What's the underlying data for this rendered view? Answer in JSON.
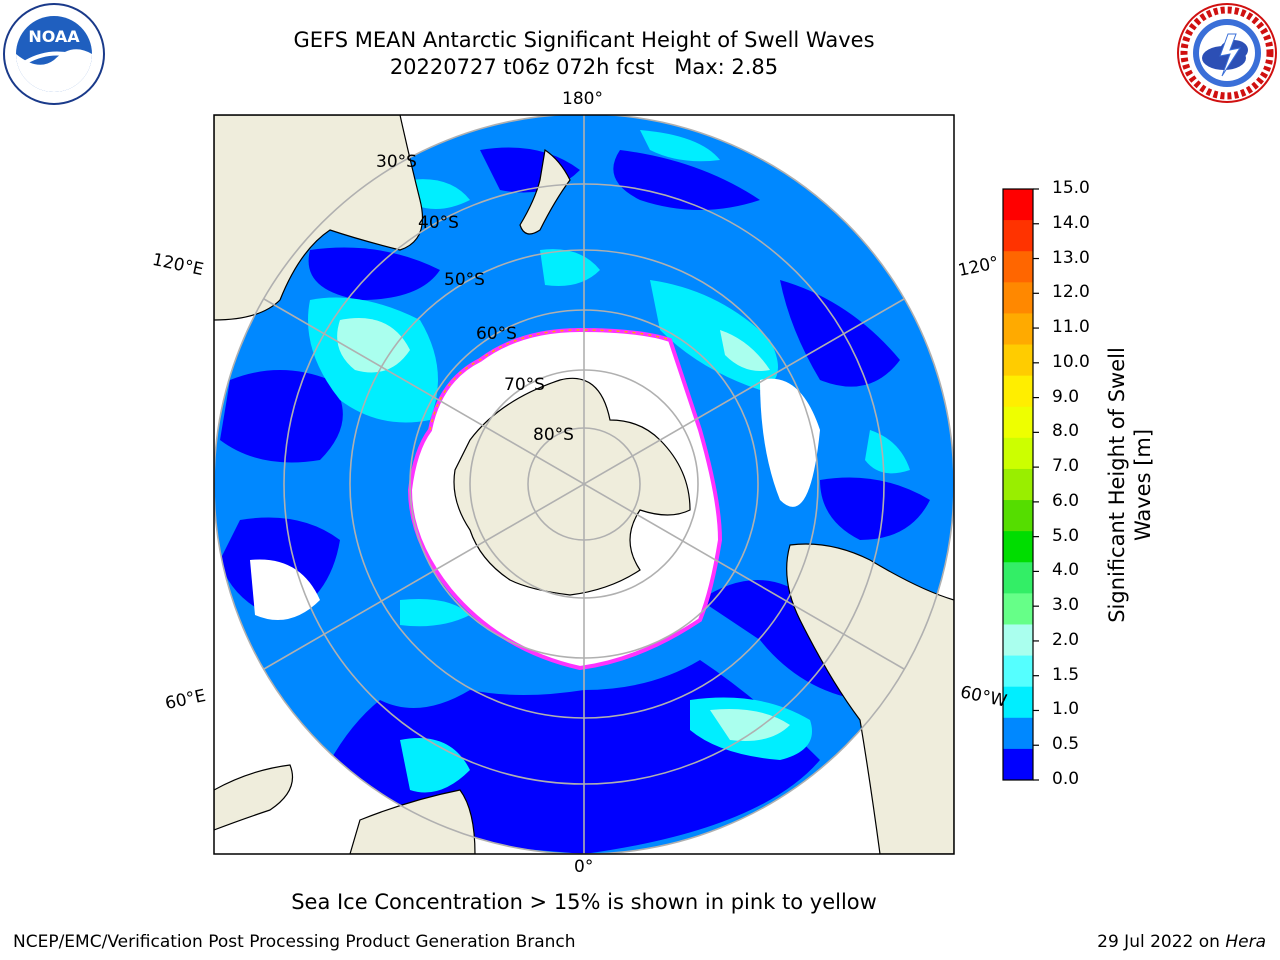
{
  "title": {
    "line1": "GEFS MEAN Antarctic Significant Height of Swell Waves",
    "line2": "20220727 t06z 072h fcst   Max: 2.85"
  },
  "map": {
    "projection": "south-polar-stereographic",
    "meridian_labels": {
      "top": "180°",
      "bottom": "0°",
      "left_upper": "120°E",
      "left_lower": "60°E",
      "right_upper": "120°",
      "right_lower": "60°W"
    },
    "parallel_labels": [
      "30°S",
      "40°S",
      "50°S",
      "60°S",
      "70°S",
      "80°S"
    ],
    "land_color": "#efeddc",
    "sea_ice_color": "#ffffff",
    "ice_edge_colors": [
      "#ff33ff",
      "#ffaa00"
    ]
  },
  "colorbar": {
    "label": "Significant Height of Swell\nWaves [m]",
    "label_line1": "Significant Height of Swell",
    "label_line2": "Waves [m]",
    "ticks": [
      "15.0",
      "14.0",
      "13.0",
      "12.0",
      "11.0",
      "10.0",
      "9.0",
      "8.0",
      "7.0",
      "6.0",
      "5.0",
      "4.0",
      "3.0",
      "2.0",
      "1.5",
      "1.0",
      "0.5",
      "0.0"
    ],
    "colors_top_to_bottom": [
      "#ff0000",
      "#ff3300",
      "#ff6600",
      "#ff8800",
      "#ffaa00",
      "#ffcc00",
      "#ffee00",
      "#eeff00",
      "#ccff00",
      "#99ee00",
      "#55dd00",
      "#00dd00",
      "#33ee66",
      "#66ff88",
      "#aaffee",
      "#55ffff",
      "#00eeff",
      "#0088ff",
      "#0000ff"
    ]
  },
  "note": "Sea Ice Concentration > 15% is shown in pink to yellow",
  "footer": {
    "left": "NCEP/EMC/Verification Post Processing Product Generation Branch",
    "right_date": "29 Jul 2022 on ",
    "right_host": "Hera"
  },
  "logos": {
    "left": "noaa-logo",
    "right": "national-weather-service-logo"
  }
}
